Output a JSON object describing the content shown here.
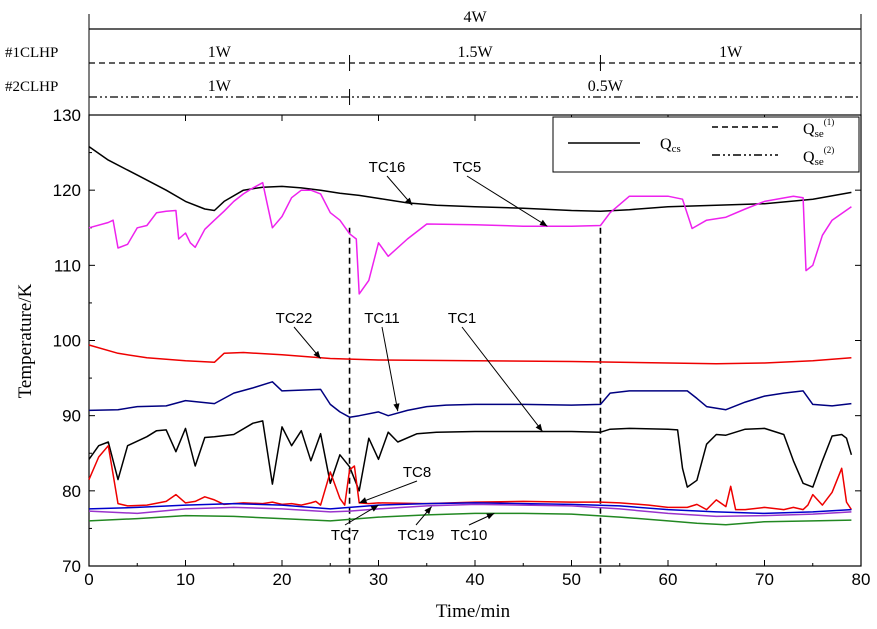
{
  "chart_data": {
    "type": "line",
    "xlabel": "Time/min",
    "ylabel": "Temperature/K",
    "xlim": [
      0,
      80
    ],
    "ylim": [
      70,
      130
    ],
    "x_ticks": [
      0,
      10,
      20,
      30,
      40,
      50,
      60,
      70,
      80
    ],
    "y_ticks": [
      70,
      80,
      90,
      100,
      110,
      120,
      130
    ],
    "grid": false,
    "legend_position": "top-right",
    "legend": [
      {
        "label": "Q",
        "sub": "cs",
        "sup": "",
        "style": "solid"
      },
      {
        "label": "Q",
        "sub": "se",
        "sup": "(1)",
        "style": "dashed"
      },
      {
        "label": "Q",
        "sub": "se",
        "sup": "(2)",
        "style": "dashdotdot"
      }
    ],
    "heat_load_bands": [
      {
        "label": "",
        "style": "solid",
        "segments": [
          {
            "from": 0,
            "to": 80,
            "text": "4W"
          }
        ]
      },
      {
        "label": "#1CLHP",
        "style": "dashed",
        "segments": [
          {
            "from": 0,
            "to": 27,
            "text": "1W"
          },
          {
            "from": 27,
            "to": 53,
            "text": "1.5W"
          },
          {
            "from": 53,
            "to": 80,
            "text": "1W"
          }
        ]
      },
      {
        "label": "#2CLHP",
        "style": "dashdotdot",
        "segments": [
          {
            "from": 0,
            "to": 27,
            "text": "1W"
          },
          {
            "from": 27,
            "to": 80,
            "text": "0.5W"
          }
        ]
      }
    ],
    "change_lines": [
      27,
      53
    ],
    "series": [
      {
        "name": "TC16",
        "color": "#000000",
        "x": [
          0,
          2,
          5,
          8,
          10,
          12,
          13,
          14,
          16,
          18,
          20,
          22,
          24,
          26,
          28,
          30,
          33,
          36,
          40,
          45,
          50,
          53,
          56,
          60,
          65,
          70,
          75,
          79
        ],
        "y": [
          125.8,
          124,
          122,
          120,
          118.5,
          117.5,
          117.3,
          118.5,
          120,
          120.4,
          120.5,
          120.3,
          120,
          119.6,
          119.3,
          118.9,
          118.3,
          118,
          117.8,
          117.6,
          117.3,
          117.2,
          117.4,
          117.8,
          118,
          118.2,
          118.8,
          119.7
        ]
      },
      {
        "name": "TC5",
        "color": "#ee22ee",
        "x": [
          0,
          2,
          2.5,
          3,
          4,
          5,
          6,
          7,
          8,
          9,
          9.3,
          10,
          10.5,
          11,
          12,
          13,
          14,
          15,
          16,
          17,
          18,
          18.5,
          19,
          20,
          21,
          22,
          23,
          24,
          25,
          26,
          27,
          27.7,
          28,
          29,
          30,
          31,
          33,
          35,
          40,
          45,
          50,
          53,
          54,
          56,
          60,
          61.5,
          62.5,
          64,
          66,
          68,
          70,
          73,
          74,
          74.3,
          75,
          76,
          77,
          79
        ],
        "y": [
          115,
          115.7,
          116,
          112.3,
          112.8,
          115,
          115.3,
          117,
          117.2,
          117.3,
          113.5,
          114.3,
          113,
          112.4,
          114.8,
          116,
          117.2,
          118.5,
          119.5,
          120.3,
          121,
          118,
          115,
          116.5,
          119,
          120,
          120,
          119.5,
          117,
          116,
          114.2,
          113.5,
          106.2,
          108,
          113,
          111.2,
          113.5,
          115.5,
          115.4,
          115.2,
          115.2,
          115.3,
          117,
          119.2,
          119.2,
          118.8,
          114.9,
          116,
          116.4,
          117.5,
          118.5,
          119.2,
          119,
          109.3,
          110,
          114,
          116,
          117.8
        ]
      },
      {
        "name": "TC22",
        "color": "#ee0000",
        "x": [
          0,
          3,
          6,
          10,
          13,
          14,
          16,
          20,
          25,
          30,
          40,
          50,
          60,
          65,
          70,
          75,
          79
        ],
        "y": [
          99.4,
          98.3,
          97.7,
          97.3,
          97.1,
          98.3,
          98.4,
          98.1,
          97.6,
          97.4,
          97.3,
          97.2,
          97.0,
          96.9,
          97.0,
          97.3,
          97.7
        ]
      },
      {
        "name": "TC11",
        "color": "#000080",
        "x": [
          0,
          3,
          5,
          8,
          10,
          13,
          15,
          17,
          19,
          20,
          22,
          24,
          25,
          26,
          27,
          28,
          30,
          31,
          33,
          35,
          37,
          40,
          45,
          50,
          53,
          54,
          56,
          60,
          62,
          63,
          64,
          66,
          68,
          70,
          72,
          74,
          75,
          77,
          79
        ],
        "y": [
          90.7,
          90.8,
          91.2,
          91.3,
          92,
          91.6,
          93,
          93.7,
          94.5,
          93.3,
          93.4,
          93.5,
          91.5,
          90.5,
          89.8,
          90,
          90.5,
          90,
          90.7,
          91.2,
          91.4,
          91.5,
          91.5,
          91.4,
          91.5,
          93,
          93.3,
          93.3,
          93.3,
          92.3,
          91.2,
          90.8,
          91.8,
          92.6,
          93,
          93.3,
          91.5,
          91.3,
          91.6
        ]
      },
      {
        "name": "TC1",
        "color": "#000000",
        "x": [
          0,
          1,
          2,
          3,
          4,
          6,
          7,
          8,
          9,
          10,
          11,
          12,
          13,
          15,
          17,
          18,
          19,
          20,
          21,
          22,
          23,
          24,
          25,
          26,
          27,
          28,
          29,
          30,
          31,
          32,
          34,
          36,
          40,
          45,
          50,
          53,
          54,
          56,
          60,
          61,
          61.5,
          62,
          63,
          64,
          65,
          66,
          68,
          70,
          72,
          73,
          74,
          75,
          76,
          77,
          78,
          78.5,
          79
        ],
        "y": [
          84.2,
          86,
          86.5,
          81.5,
          86,
          87.2,
          88,
          88.1,
          85.2,
          88.3,
          83.3,
          87.1,
          87.2,
          87.5,
          89,
          89.3,
          80.9,
          88.5,
          86,
          88,
          84,
          87.6,
          81,
          84.8,
          83.2,
          80,
          87,
          84.2,
          87.8,
          86.5,
          87.6,
          87.8,
          87.9,
          87.9,
          87.9,
          87.8,
          88.2,
          88.3,
          88.2,
          88.1,
          83,
          80.5,
          81.4,
          86.2,
          87.5,
          87.4,
          88.2,
          88.3,
          87.5,
          84,
          81,
          80.5,
          84,
          87.3,
          87.5,
          87,
          84.8
        ]
      },
      {
        "name": "TC8",
        "color": "#ee0000",
        "x": [
          0,
          1,
          2,
          3,
          4,
          6,
          8,
          9,
          10,
          11,
          12,
          13,
          14,
          16,
          18,
          19,
          20,
          21,
          22,
          23,
          23.5,
          24,
          25,
          26,
          26.5,
          27,
          27.5,
          28,
          29,
          30,
          35,
          40,
          45,
          50,
          53,
          55,
          58,
          60,
          62,
          63,
          64,
          65,
          66,
          66.5,
          67,
          68,
          70,
          72,
          73,
          74,
          74.5,
          75,
          76,
          77,
          78,
          78.5,
          79
        ],
        "y": [
          81.5,
          84.5,
          86,
          78.3,
          78,
          78.1,
          78.6,
          79.5,
          78.4,
          78.6,
          79.2,
          78.8,
          78.2,
          78.4,
          78.3,
          78.5,
          78.2,
          78.3,
          78.1,
          78.4,
          78.6,
          78.1,
          82.5,
          79,
          78.1,
          82.8,
          83.3,
          78.4,
          78.3,
          78.4,
          78.3,
          78.5,
          78.6,
          78.5,
          78.5,
          78.4,
          78.1,
          77.8,
          77.8,
          78.2,
          77.5,
          78.8,
          77.9,
          80.6,
          77.5,
          77.5,
          77.8,
          77.5,
          77.8,
          77.5,
          78.1,
          79.5,
          78.1,
          79.8,
          83,
          78.5,
          77.5
        ]
      },
      {
        "name": "TC7",
        "color": "#0000cc",
        "x": [
          0,
          5,
          10,
          15,
          20,
          25,
          27,
          30,
          35,
          40,
          45,
          50,
          55,
          60,
          65,
          70,
          75,
          79
        ],
        "y": [
          77.6,
          77.8,
          78.1,
          78.3,
          78.1,
          77.6,
          77.8,
          78.1,
          78.3,
          78.4,
          78.3,
          78.2,
          78.0,
          77.5,
          77.2,
          77.0,
          77.2,
          77.5
        ]
      },
      {
        "name": "TC19",
        "color": "#9933cc",
        "x": [
          0,
          5,
          10,
          15,
          20,
          25,
          27,
          30,
          35,
          40,
          45,
          50,
          55,
          60,
          65,
          70,
          75,
          79
        ],
        "y": [
          77.3,
          77.0,
          77.6,
          77.8,
          77.6,
          77.2,
          77.3,
          77.6,
          78.0,
          78.2,
          78.1,
          78.0,
          77.6,
          77.0,
          76.6,
          76.7,
          76.9,
          77.2
        ]
      },
      {
        "name": "TC10",
        "color": "#228822",
        "x": [
          0,
          5,
          10,
          15,
          20,
          25,
          27,
          30,
          35,
          40,
          45,
          50,
          55,
          60,
          63,
          66,
          70,
          75,
          79
        ],
        "y": [
          76.0,
          76.3,
          76.7,
          76.6,
          76.3,
          76.0,
          76.2,
          76.5,
          76.8,
          77.0,
          77.0,
          76.9,
          76.5,
          76.0,
          75.7,
          75.5,
          75.9,
          76.0,
          76.1
        ]
      }
    ],
    "annotations": [
      {
        "text": "TC16",
        "series": "TC16",
        "px": [
          387,
          172
        ],
        "ax": 33.5,
        "ay": 118.0
      },
      {
        "text": "TC5",
        "series": "TC5",
        "px": [
          467,
          172
        ],
        "ax": 47.5,
        "ay": 115.2
      },
      {
        "text": "TC22",
        "series": "TC22",
        "px": [
          294,
          323
        ],
        "ax": 24.0,
        "ay": 97.6
      },
      {
        "text": "TC11",
        "series": "TC11",
        "px": [
          382,
          323
        ],
        "ax": 32.0,
        "ay": 90.6
      },
      {
        "text": "TC1",
        "series": "TC1",
        "px": [
          462,
          323
        ],
        "ax": 47.0,
        "ay": 87.9
      },
      {
        "text": "TC8",
        "series": "TC8",
        "px": [
          417,
          477
        ],
        "ax": 28.0,
        "ay": 78.4
      },
      {
        "text": "TC7",
        "series": "TC7",
        "px": [
          345,
          540
        ],
        "ax": 30.0,
        "ay": 78.1
      },
      {
        "text": "TC19",
        "series": "TC19",
        "px": [
          416,
          540
        ],
        "ax": 35.5,
        "ay": 77.9
      },
      {
        "text": "TC10",
        "series": "TC10",
        "px": [
          469,
          540
        ],
        "ax": 42.0,
        "ay": 77.0
      }
    ]
  }
}
